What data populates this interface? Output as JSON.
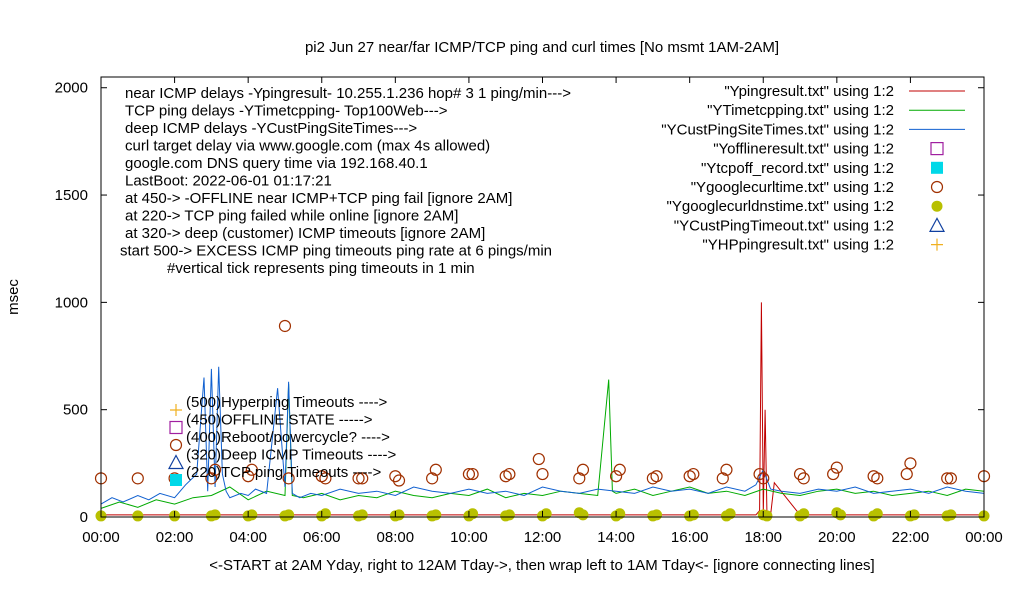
{
  "chart_data": {
    "type": "line",
    "title": "pi2  Jun 27  near/far ICMP/TCP ping and curl times [No msmt 1AM-2AM]",
    "xlabel": "<-START at 2AM Yday, right to 12AM Tday->, then wrap left to 1AM Tday<- [ignore connecting lines]",
    "ylabel": "msec",
    "xlim": [
      0,
      24
    ],
    "ylim": [
      0,
      2050
    ],
    "x_ticks": [
      "00:00",
      "02:00",
      "04:00",
      "06:00",
      "08:00",
      "10:00",
      "12:00",
      "14:00",
      "16:00",
      "18:00",
      "20:00",
      "22:00",
      "00:00"
    ],
    "y_ticks": [
      0,
      500,
      1000,
      1500,
      2000
    ],
    "notes": [
      "near ICMP delays -Ypingresult- 10.255.1.236 hop# 3 1 ping/min--->",
      "TCP ping delays -YTimetcpping- Top100Web--->",
      "deep ICMP delays -YCustPingSiteTimes--->",
      "curl target delay via www.google.com (max 4s allowed)",
      "google.com DNS query time via 192.168.40.1",
      "LastBoot: 2022-06-01 01:17:21",
      "at 450-> -OFFLINE near ICMP+TCP ping fail [ignore 2AM]",
      "at 220-> TCP ping failed while online [ignore 2AM]",
      "at 320-> deep (customer) ICMP timeouts [ignore 2AM]",
      "start 500-> EXCESS ICMP ping timeouts ping rate at 6 pings/min",
      "#vertical tick represents ping timeouts in 1 min"
    ],
    "legend_position": "top-right",
    "legend": [
      {
        "label": "\"Ypingresult.txt\" using 1:2",
        "style": "line",
        "color": "#c00000"
      },
      {
        "label": "\"YTimetcpping.txt\" using 1:2",
        "style": "line",
        "color": "#00aa00"
      },
      {
        "label": "\"YCustPingSiteTimes.txt\" using 1:2",
        "style": "line",
        "color": "#1060d0"
      },
      {
        "label": "\"Yofflineresult.txt\" using 1:2",
        "style": "open-square",
        "color": "#a020a0"
      },
      {
        "label": "\"Ytcpoff_record.txt\" using 1:2",
        "style": "filled-square",
        "color": "#00d8e8"
      },
      {
        "label": "\"Ygooglecurltime.txt\" using 1:2",
        "style": "open-circle",
        "color": "#a03000"
      },
      {
        "label": "\"Ygooglecurldnstime.txt\" using 1:2",
        "style": "filled-circle",
        "color": "#b8c000"
      },
      {
        "label": "\"YCustPingTimeout.txt\" using 1:2",
        "style": "open-triangle",
        "color": "#1040a0"
      },
      {
        "label": "\"YHPpingresult.txt\" using 1:2",
        "style": "plus",
        "color": "#f0b020"
      }
    ],
    "inner_legend": [
      {
        "label": "(500)Hyperping Timeouts ---->",
        "style": "plus",
        "color": "#f0b020"
      },
      {
        "label": "(450)OFFLINE STATE ----->",
        "style": "open-square",
        "color": "#a020a0"
      },
      {
        "label": "(400)Reboot/powercycle? ---->",
        "style": "open-circle",
        "color": "#a03000"
      },
      {
        "label": "(320)Deep ICMP Timeouts ---->",
        "style": "open-triangle",
        "color": "#1040a0"
      },
      {
        "label": "(220)TCP ping Timeouts ---->",
        "style": "filled-square",
        "color": "#00d8e8"
      }
    ],
    "series": [
      {
        "name": "\"Ypingresult.txt\" using 1:2",
        "kind": "line",
        "x": [
          0.0,
          1.0,
          2.0,
          3.0,
          4.0,
          5.0,
          6.0,
          7.0,
          8.0,
          9.0,
          10.0,
          11.0,
          12.0,
          13.0,
          14.0,
          15.0,
          16.0,
          17.0,
          17.8,
          17.9,
          17.95,
          18.0,
          18.05,
          18.1,
          18.2,
          18.3,
          19.0,
          20.0,
          21.0,
          22.0,
          23.0,
          24.0
        ],
        "y": [
          10,
          10,
          10,
          10,
          10,
          10,
          10,
          10,
          10,
          10,
          10,
          10,
          10,
          10,
          10,
          10,
          10,
          10,
          10,
          30,
          1000,
          20,
          500,
          30,
          10,
          160,
          10,
          10,
          10,
          10,
          10,
          10
        ]
      },
      {
        "name": "\"YTimetcpping.txt\" using 1:2",
        "kind": "line",
        "x": [
          0.0,
          0.5,
          1.0,
          1.5,
          2.0,
          2.5,
          3.0,
          3.5,
          4.0,
          4.5,
          5.0,
          5.1,
          5.2,
          5.5,
          6.0,
          6.5,
          7.0,
          7.5,
          8.0,
          8.5,
          9.0,
          9.5,
          10.0,
          10.5,
          11.0,
          11.5,
          12.0,
          12.5,
          13.0,
          13.5,
          13.8,
          13.9,
          14.0,
          14.5,
          15.0,
          15.5,
          16.0,
          16.5,
          17.0,
          17.5,
          18.0,
          18.5,
          19.0,
          19.5,
          20.0,
          20.5,
          21.0,
          21.5,
          22.0,
          22.5,
          23.0,
          23.5,
          24.0
        ],
        "y": [
          40,
          70,
          45,
          80,
          60,
          90,
          100,
          140,
          80,
          120,
          100,
          620,
          100,
          90,
          110,
          80,
          100,
          90,
          120,
          100,
          90,
          110,
          100,
          130,
          90,
          110,
          100,
          120,
          110,
          100,
          640,
          120,
          110,
          130,
          100,
          120,
          140,
          110,
          120,
          100,
          130,
          110,
          100,
          120,
          130,
          110,
          120,
          100,
          110,
          120,
          100,
          130,
          120
        ]
      },
      {
        "name": "\"YCustPingSiteTimes.txt\" using 1:2",
        "kind": "line",
        "x": [
          0.0,
          0.3,
          0.6,
          1.0,
          1.3,
          1.6,
          2.0,
          2.3,
          2.6,
          2.8,
          2.9,
          3.0,
          3.1,
          3.2,
          3.3,
          3.4,
          3.5,
          3.8,
          4.0,
          4.2,
          4.5,
          4.8,
          5.0,
          5.1,
          5.2,
          5.4,
          5.7,
          6.0,
          6.5,
          7.0,
          7.5,
          8.0,
          8.5,
          9.0,
          9.5,
          10.0,
          10.5,
          11.0,
          11.5,
          12.0,
          12.5,
          13.0,
          13.5,
          14.0,
          14.5,
          15.0,
          15.5,
          16.0,
          16.5,
          17.0,
          17.5,
          17.8,
          18.0,
          18.2,
          18.5,
          19.0,
          19.5,
          20.0,
          20.5,
          21.0,
          21.5,
          22.0,
          22.5,
          23.0,
          23.5,
          24.0
        ],
        "y": [
          60,
          90,
          70,
          100,
          80,
          110,
          90,
          150,
          200,
          650,
          120,
          690,
          140,
          700,
          200,
          120,
          90,
          110,
          100,
          130,
          110,
          600,
          140,
          630,
          110,
          90,
          110,
          100,
          130,
          110,
          120,
          100,
          140,
          120,
          110,
          130,
          110,
          120,
          100,
          140,
          120,
          110,
          130,
          120,
          110,
          140,
          120,
          130,
          110,
          140,
          120,
          150,
          220,
          130,
          120,
          110,
          130,
          120,
          140,
          110,
          120,
          130,
          110,
          140,
          120,
          110
        ]
      },
      {
        "name": "\"Ygooglecurltime.txt\" using 1:2",
        "kind": "open-circle",
        "x": [
          0.0,
          1.0,
          2.0,
          3.0,
          3.1,
          4.0,
          4.1,
          5.0,
          5.1,
          6.0,
          6.1,
          7.0,
          7.1,
          8.0,
          8.1,
          9.0,
          9.1,
          10.0,
          10.1,
          11.0,
          11.1,
          11.9,
          12.0,
          13.0,
          13.1,
          14.0,
          14.1,
          15.0,
          15.1,
          16.0,
          16.1,
          16.9,
          17.0,
          17.9,
          18.0,
          19.0,
          19.1,
          19.9,
          20.0,
          21.0,
          21.1,
          21.9,
          22.0,
          23.0,
          23.1,
          24.0
        ],
        "y": [
          180,
          180,
          180,
          180,
          220,
          190,
          220,
          890,
          180,
          190,
          180,
          180,
          180,
          190,
          170,
          180,
          220,
          200,
          200,
          190,
          200,
          270,
          200,
          180,
          220,
          190,
          220,
          180,
          190,
          190,
          200,
          180,
          220,
          200,
          180,
          200,
          180,
          200,
          230,
          190,
          180,
          200,
          250,
          180,
          180,
          190
        ]
      },
      {
        "name": "\"Ygooglecurldnstime.txt\" using 1:2",
        "kind": "filled-circle",
        "x": [
          0.0,
          1.0,
          2.0,
          3.0,
          3.1,
          4.0,
          4.1,
          5.0,
          5.1,
          6.0,
          6.1,
          7.0,
          7.1,
          8.0,
          8.1,
          9.0,
          9.1,
          10.0,
          10.1,
          11.0,
          11.1,
          12.0,
          12.1,
          13.0,
          13.1,
          14.0,
          14.1,
          15.0,
          15.1,
          16.0,
          16.1,
          17.0,
          17.1,
          18.0,
          18.1,
          19.0,
          19.1,
          20.0,
          20.1,
          21.0,
          21.1,
          22.0,
          22.1,
          23.0,
          23.1,
          24.0
        ],
        "y": [
          5,
          5,
          5,
          5,
          10,
          5,
          10,
          5,
          10,
          5,
          15,
          5,
          10,
          5,
          10,
          5,
          10,
          5,
          15,
          5,
          10,
          5,
          15,
          20,
          10,
          5,
          15,
          5,
          10,
          5,
          10,
          5,
          15,
          10,
          5,
          5,
          15,
          20,
          10,
          5,
          15,
          5,
          10,
          5,
          10,
          5
        ]
      }
    ]
  }
}
